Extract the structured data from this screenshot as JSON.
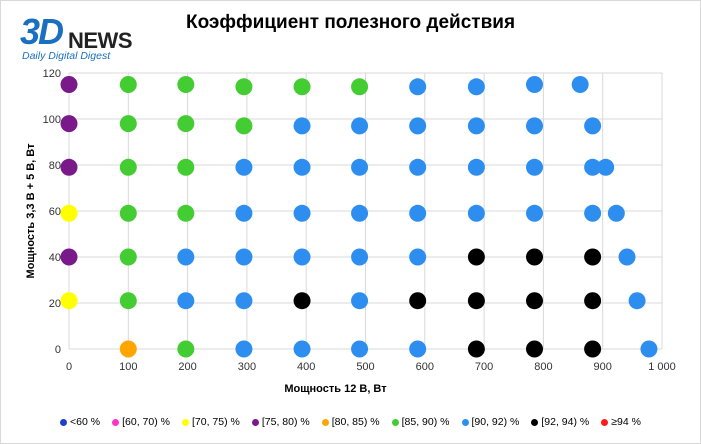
{
  "logo": {
    "mark": "3D",
    "word": "NEWS",
    "tagline": "Daily Digital Digest"
  },
  "chart_data": {
    "type": "scatter",
    "title": "Коэффициент полезного действия",
    "xlabel": "Мощность  12 В, Вт",
    "ylabel": "Мощность  3,3 В + 5 В, Вт",
    "xlim": [
      0,
      1000
    ],
    "ylim": [
      0,
      120
    ],
    "x_ticks": [
      0,
      100,
      200,
      300,
      400,
      500,
      600,
      700,
      800,
      900,
      1000
    ],
    "x_tick_labels": [
      "0",
      "100",
      "200",
      "300",
      "400",
      "500",
      "600",
      "700",
      "800",
      "900",
      "1 000"
    ],
    "y_ticks": [
      0,
      20,
      40,
      60,
      80,
      100,
      120
    ],
    "y_tick_labels": [
      "0",
      "20",
      "40",
      "60",
      "80",
      "100",
      "120"
    ],
    "grid": true,
    "legend_position": "bottom",
    "categories": [
      {
        "name": "<60 %",
        "color": "#1f3fcc"
      },
      {
        "name": "[60, 70) %",
        "color": "#ff33cc"
      },
      {
        "name": "[70, 75) %",
        "color": "#ffff00"
      },
      {
        "name": "[75, 80) %",
        "color": "#7a1a8a"
      },
      {
        "name": "[80, 85) %",
        "color": "#ffa500"
      },
      {
        "name": "[85, 90) %",
        "color": "#44cc33"
      },
      {
        "name": "[90, 92) %",
        "color": "#2e8ef0"
      },
      {
        "name": "[92, 94) %",
        "color": "#000000"
      },
      {
        "name": "≥94 %",
        "color": "#ff1a1a"
      }
    ],
    "points": [
      {
        "x": 0,
        "y": 115,
        "c": 3
      },
      {
        "x": 0,
        "y": 98,
        "c": 3
      },
      {
        "x": 0,
        "y": 79,
        "c": 3
      },
      {
        "x": 0,
        "y": 59,
        "c": 2
      },
      {
        "x": 0,
        "y": 40,
        "c": 3
      },
      {
        "x": 0,
        "y": 21,
        "c": 2
      },
      {
        "x": 100,
        "y": 115,
        "c": 5
      },
      {
        "x": 100,
        "y": 98,
        "c": 5
      },
      {
        "x": 100,
        "y": 79,
        "c": 5
      },
      {
        "x": 100,
        "y": 59,
        "c": 5
      },
      {
        "x": 100,
        "y": 40,
        "c": 5
      },
      {
        "x": 100,
        "y": 21,
        "c": 5
      },
      {
        "x": 100,
        "y": 0,
        "c": 4
      },
      {
        "x": 197,
        "y": 115,
        "c": 5
      },
      {
        "x": 197,
        "y": 98,
        "c": 5
      },
      {
        "x": 197,
        "y": 79,
        "c": 5
      },
      {
        "x": 197,
        "y": 59,
        "c": 5
      },
      {
        "x": 197,
        "y": 40,
        "c": 6
      },
      {
        "x": 197,
        "y": 21,
        "c": 6
      },
      {
        "x": 197,
        "y": 0,
        "c": 5
      },
      {
        "x": 295,
        "y": 114,
        "c": 5
      },
      {
        "x": 295,
        "y": 97,
        "c": 5
      },
      {
        "x": 295,
        "y": 79,
        "c": 6
      },
      {
        "x": 295,
        "y": 59,
        "c": 6
      },
      {
        "x": 295,
        "y": 40,
        "c": 6
      },
      {
        "x": 295,
        "y": 21,
        "c": 6
      },
      {
        "x": 295,
        "y": 0,
        "c": 6
      },
      {
        "x": 393,
        "y": 114,
        "c": 5
      },
      {
        "x": 393,
        "y": 97,
        "c": 6
      },
      {
        "x": 393,
        "y": 79,
        "c": 6
      },
      {
        "x": 393,
        "y": 59,
        "c": 6
      },
      {
        "x": 393,
        "y": 40,
        "c": 6
      },
      {
        "x": 393,
        "y": 21,
        "c": 7
      },
      {
        "x": 393,
        "y": 0,
        "c": 6
      },
      {
        "x": 490,
        "y": 114,
        "c": 5
      },
      {
        "x": 490,
        "y": 97,
        "c": 6
      },
      {
        "x": 490,
        "y": 79,
        "c": 6
      },
      {
        "x": 490,
        "y": 59,
        "c": 6
      },
      {
        "x": 490,
        "y": 40,
        "c": 6
      },
      {
        "x": 490,
        "y": 21,
        "c": 6
      },
      {
        "x": 490,
        "y": 0,
        "c": 6
      },
      {
        "x": 588,
        "y": 114,
        "c": 6
      },
      {
        "x": 588,
        "y": 97,
        "c": 6
      },
      {
        "x": 588,
        "y": 79,
        "c": 6
      },
      {
        "x": 588,
        "y": 59,
        "c": 6
      },
      {
        "x": 588,
        "y": 40,
        "c": 6
      },
      {
        "x": 588,
        "y": 21,
        "c": 7
      },
      {
        "x": 588,
        "y": 0,
        "c": 6
      },
      {
        "x": 687,
        "y": 114,
        "c": 6
      },
      {
        "x": 687,
        "y": 97,
        "c": 6
      },
      {
        "x": 687,
        "y": 79,
        "c": 6
      },
      {
        "x": 687,
        "y": 59,
        "c": 6
      },
      {
        "x": 687,
        "y": 40,
        "c": 7
      },
      {
        "x": 687,
        "y": 21,
        "c": 7
      },
      {
        "x": 687,
        "y": 0,
        "c": 7
      },
      {
        "x": 785,
        "y": 115,
        "c": 6
      },
      {
        "x": 785,
        "y": 97,
        "c": 6
      },
      {
        "x": 785,
        "y": 79,
        "c": 6
      },
      {
        "x": 785,
        "y": 59,
        "c": 6
      },
      {
        "x": 785,
        "y": 40,
        "c": 7
      },
      {
        "x": 785,
        "y": 21,
        "c": 7
      },
      {
        "x": 785,
        "y": 0,
        "c": 7
      },
      {
        "x": 862,
        "y": 115,
        "c": 6
      },
      {
        "x": 883,
        "y": 97,
        "c": 6
      },
      {
        "x": 883,
        "y": 79,
        "c": 6
      },
      {
        "x": 905,
        "y": 79,
        "c": 6
      },
      {
        "x": 883,
        "y": 59,
        "c": 6
      },
      {
        "x": 923,
        "y": 59,
        "c": 6
      },
      {
        "x": 883,
        "y": 40,
        "c": 7
      },
      {
        "x": 941,
        "y": 40,
        "c": 6
      },
      {
        "x": 883,
        "y": 21,
        "c": 7
      },
      {
        "x": 958,
        "y": 21,
        "c": 6
      },
      {
        "x": 883,
        "y": 0,
        "c": 7
      },
      {
        "x": 978,
        "y": 0,
        "c": 6
      }
    ]
  }
}
